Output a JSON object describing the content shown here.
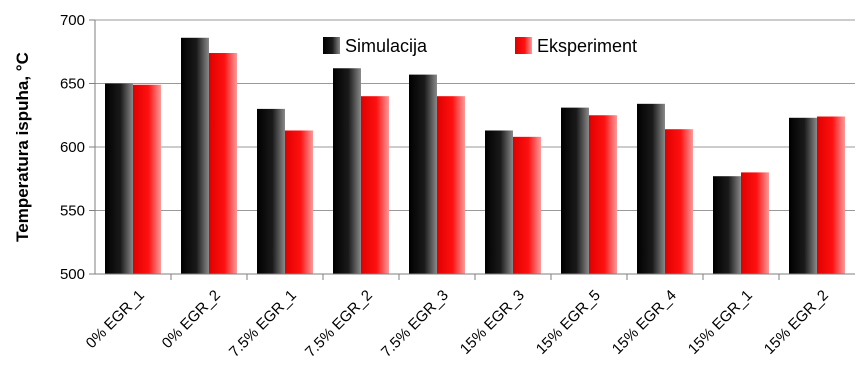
{
  "chart_data": {
    "type": "bar",
    "title": "",
    "xlabel": "",
    "ylabel": "Temperatura ispuha, °C",
    "ylim": [
      500,
      700
    ],
    "yticks": [
      500,
      550,
      600,
      650,
      700
    ],
    "grid": true,
    "legend_position": "top",
    "categories": [
      "0% EGR_1",
      "0% EGR_2",
      "7.5% EGR_1",
      "7.5% EGR_2",
      "7.5% EGR_3",
      "15% EGR_3",
      "15% EGR_5",
      "15% EGR_4",
      "15% EGR_1",
      "15% EGR_2"
    ],
    "series": [
      {
        "name": "Simulacija",
        "color": "#000000",
        "values": [
          650,
          686,
          630,
          662,
          657,
          613,
          631,
          634,
          577,
          623
        ]
      },
      {
        "name": "Eksperiment",
        "color": "#ff0000",
        "values": [
          649,
          674,
          613,
          640,
          640,
          608,
          625,
          614,
          580,
          624
        ]
      }
    ]
  }
}
